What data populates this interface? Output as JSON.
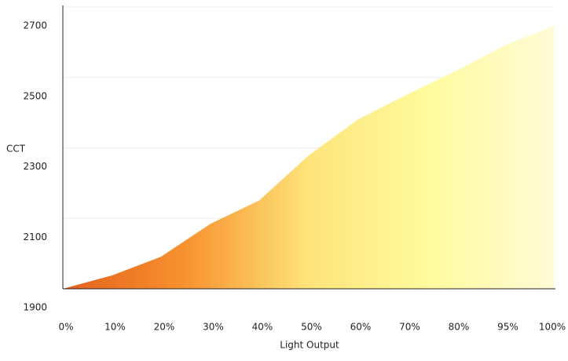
{
  "chart_data": {
    "type": "area",
    "xlabel": "Light Output",
    "ylabel": "CCT",
    "categories": [
      "0%",
      "10%",
      "20%",
      "30%",
      "40%",
      "50%",
      "60%",
      "70%",
      "80%",
      "95%",
      "100%"
    ],
    "values": [
      1900,
      1938,
      1991,
      2084,
      2151,
      2278,
      2380,
      2451,
      2518,
      2591,
      2647
    ],
    "colors": [
      "#e35f1c",
      "#f7922f",
      "#fde47a",
      "#fffb9e",
      "#fffbd6"
    ],
    "ylim": [
      1900,
      2700
    ],
    "yticks": [
      1900,
      2100,
      2300,
      2500,
      2700
    ],
    "grid": true
  }
}
